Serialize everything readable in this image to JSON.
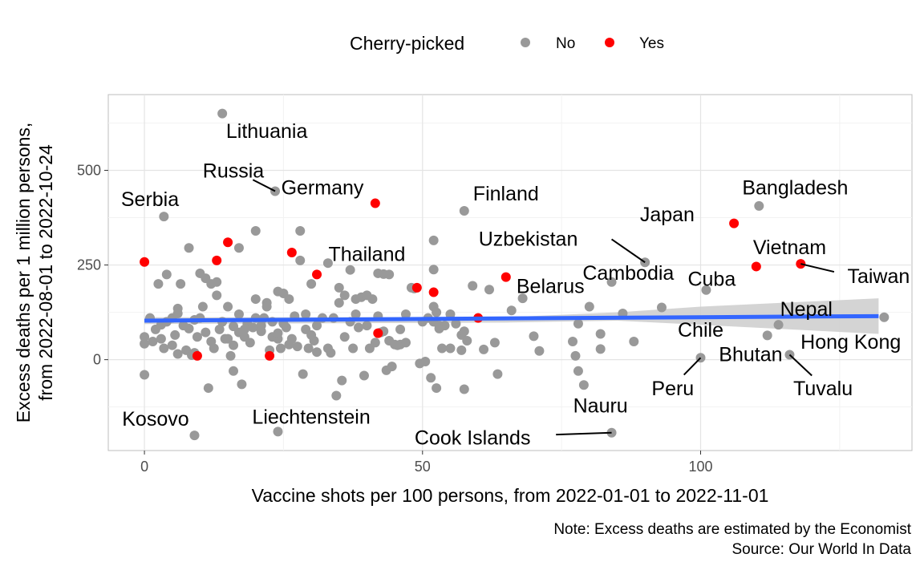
{
  "chart_data": {
    "type": "scatter",
    "xlabel": "Vaccine shots per 100 persons, from 2022-01-01 to 2022-11-01",
    "ylabel": [
      "Excess deaths per 1 million persons,",
      "from 2022-08-01 to 2022-10-24"
    ],
    "xlim": [
      -6.5,
      138
    ],
    "ylim": [
      -240,
      700
    ],
    "x_ticks": [
      0,
      50,
      100
    ],
    "y_ticks": [
      0,
      250,
      500
    ],
    "grid": true,
    "legend": {
      "title": "Cherry-picked",
      "placement": "top",
      "entries": [
        {
          "label": "No",
          "color": "#999999"
        },
        {
          "label": "Yes",
          "color": "#ff0000"
        }
      ]
    },
    "caption": [
      "Note: Excess deaths are estimated by the Economist",
      "Source: Our World In Data"
    ],
    "trend": {
      "x": [
        0,
        132
      ],
      "y": [
        103,
        115
      ],
      "color": "#3366ff"
    },
    "band": {
      "upper": [
        [
          0,
          112
        ],
        [
          65,
          112
        ],
        [
          85,
          125
        ],
        [
          100,
          140
        ],
        [
          132,
          162
        ]
      ],
      "lower": [
        [
          0,
          94
        ],
        [
          65,
          98
        ],
        [
          85,
          103
        ],
        [
          100,
          92
        ],
        [
          132,
          68
        ]
      ]
    },
    "series": [
      {
        "name": "No",
        "color": "#999999",
        "points": [
          [
            14,
            650
          ],
          [
            23.5,
            445
          ],
          [
            3.5,
            378
          ],
          [
            57.5,
            393
          ],
          [
            110.5,
            406
          ],
          [
            90,
            257
          ],
          [
            84,
            205
          ],
          [
            101,
            184
          ],
          [
            133,
            112
          ],
          [
            114,
            92
          ],
          [
            112,
            64
          ],
          [
            116,
            13
          ],
          [
            100,
            5
          ],
          [
            84,
            -193
          ],
          [
            78,
            -30
          ],
          [
            79,
            -67
          ],
          [
            52,
            315
          ],
          [
            52,
            238
          ],
          [
            37,
            237
          ],
          [
            43,
            226
          ],
          [
            44,
            225
          ],
          [
            42,
            228
          ],
          [
            20,
            340
          ],
          [
            28,
            340
          ],
          [
            17,
            295
          ],
          [
            8,
            295
          ],
          [
            1,
            110
          ],
          [
            2,
            80
          ],
          [
            3,
            92
          ],
          [
            4,
            225
          ],
          [
            5,
            110
          ],
          [
            6,
            122
          ],
          [
            7,
            90
          ],
          [
            8,
            82
          ],
          [
            9,
            105
          ],
          [
            10,
            228
          ],
          [
            11,
            215
          ],
          [
            12,
            200
          ],
          [
            13,
            170
          ],
          [
            14,
            100
          ],
          [
            15,
            140
          ],
          [
            16,
            88
          ],
          [
            17,
            72
          ],
          [
            18,
            60
          ],
          [
            19,
            45
          ],
          [
            20,
            160
          ],
          [
            21,
            90
          ],
          [
            22,
            150
          ],
          [
            23,
            100
          ],
          [
            24,
            180
          ],
          [
            25,
            175
          ],
          [
            26,
            160
          ],
          [
            27,
            115
          ],
          [
            28,
            262
          ],
          [
            29,
            120
          ],
          [
            30,
            200
          ],
          [
            31,
            90
          ],
          [
            32,
            110
          ],
          [
            33,
            255
          ],
          [
            34,
            110
          ],
          [
            35,
            150
          ],
          [
            36,
            60
          ],
          [
            37,
            100
          ],
          [
            38,
            160
          ],
          [
            39,
            165
          ],
          [
            40,
            170
          ],
          [
            41,
            160
          ],
          [
            42,
            115
          ],
          [
            43,
            75
          ],
          [
            44,
            50
          ],
          [
            45,
            40
          ],
          [
            46,
            40
          ],
          [
            47,
            45
          ],
          [
            48,
            190
          ],
          [
            50,
            100
          ],
          [
            51,
            110
          ],
          [
            52,
            140
          ],
          [
            52.5,
            125
          ],
          [
            53,
            90
          ],
          [
            54,
            90
          ],
          [
            55,
            30
          ],
          [
            56,
            95
          ],
          [
            57,
            65
          ],
          [
            57.5,
            75
          ],
          [
            58,
            50
          ],
          [
            59,
            195
          ],
          [
            61,
            27
          ],
          [
            62,
            185
          ],
          [
            63,
            45
          ],
          [
            66,
            130
          ],
          [
            68,
            162
          ],
          [
            70,
            62
          ],
          [
            71,
            23
          ],
          [
            77,
            48
          ],
          [
            77.5,
            10
          ],
          [
            78,
            95
          ],
          [
            80,
            140
          ],
          [
            82,
            28
          ],
          [
            82,
            68
          ],
          [
            86,
            122
          ],
          [
            88,
            48
          ],
          [
            93,
            138
          ],
          [
            0,
            42
          ],
          [
            0,
            -40
          ],
          [
            0,
            60
          ],
          [
            1.5,
            48
          ],
          [
            2.5,
            200
          ],
          [
            3,
            55
          ],
          [
            4,
            100
          ],
          [
            5,
            38
          ],
          [
            6,
            15
          ],
          [
            6.5,
            200
          ],
          [
            7.5,
            25
          ],
          [
            8.5,
            12
          ],
          [
            9.5,
            60
          ],
          [
            10.5,
            140
          ],
          [
            11.5,
            -75
          ],
          [
            12.5,
            30
          ],
          [
            13.5,
            80
          ],
          [
            14.5,
            55
          ],
          [
            15.5,
            10
          ],
          [
            16,
            -30
          ],
          [
            17.5,
            -65
          ],
          [
            18.5,
            95
          ],
          [
            19.5,
            85
          ],
          [
            21.5,
            110
          ],
          [
            22.5,
            25
          ],
          [
            24.5,
            30
          ],
          [
            25.5,
            85
          ],
          [
            26.5,
            55
          ],
          [
            27.5,
            35
          ],
          [
            28.5,
            -38
          ],
          [
            29.5,
            30
          ],
          [
            30.5,
            50
          ],
          [
            33.5,
            18
          ],
          [
            34.5,
            -95
          ],
          [
            35.5,
            -55
          ],
          [
            37.5,
            30
          ],
          [
            38.5,
            85
          ],
          [
            39.5,
            -42
          ],
          [
            40.5,
            30
          ],
          [
            41.5,
            45
          ],
          [
            42.5,
            72
          ],
          [
            43.5,
            -28
          ],
          [
            44.5,
            -18
          ],
          [
            45.5,
            38
          ],
          [
            48.5,
            188
          ],
          [
            49.5,
            -10
          ],
          [
            50.5,
            -5
          ],
          [
            51.5,
            -48
          ],
          [
            52.5,
            -75
          ],
          [
            53.5,
            30
          ],
          [
            63.5,
            -38
          ],
          [
            57.5,
            -78
          ],
          [
            5.5,
            65
          ],
          [
            3.5,
            30
          ],
          [
            6,
            135
          ],
          [
            9,
            18
          ],
          [
            10,
            110
          ],
          [
            11,
            72
          ],
          [
            12,
            48
          ],
          [
            17,
            120
          ],
          [
            18,
            80
          ],
          [
            20,
            110
          ],
          [
            21,
            75
          ],
          [
            23,
            60
          ],
          [
            24,
            55
          ],
          [
            25,
            95
          ],
          [
            26,
            40
          ],
          [
            29,
            80
          ],
          [
            30,
            65
          ],
          [
            31,
            20
          ],
          [
            33,
            30
          ],
          [
            35,
            190
          ],
          [
            36,
            170
          ],
          [
            38,
            120
          ],
          [
            40,
            90
          ],
          [
            46,
            80
          ],
          [
            47,
            120
          ],
          [
            52,
            100
          ],
          [
            53,
            82
          ],
          [
            55,
            120
          ],
          [
            57,
            25
          ],
          [
            13,
            205
          ],
          [
            14,
            100
          ],
          [
            15,
            55
          ],
          [
            16,
            38
          ],
          [
            22,
            140
          ],
          [
            24,
            70
          ]
        ]
      },
      {
        "name": "Yes",
        "color": "#ff0000",
        "points": [
          [
            41.5,
            413
          ],
          [
            106,
            360
          ],
          [
            110,
            246
          ],
          [
            118,
            253
          ],
          [
            0,
            258
          ],
          [
            13,
            262
          ],
          [
            15,
            310
          ],
          [
            26.5,
            283
          ],
          [
            31,
            225
          ],
          [
            49,
            190
          ],
          [
            52,
            178
          ],
          [
            65,
            218
          ],
          [
            60,
            110
          ],
          [
            42,
            70
          ],
          [
            22.5,
            10
          ],
          [
            9.5,
            10
          ]
        ]
      }
    ],
    "labels": [
      {
        "text": "Lithuania",
        "x": 14,
        "y": 650,
        "lx": 22,
        "ly": 605
      },
      {
        "text": "Russia",
        "x": 23.5,
        "y": 445,
        "lx": 16,
        "ly": 500
      },
      {
        "text": "Germany",
        "x": 41.5,
        "y": 413,
        "lx": 32,
        "ly": 455
      },
      {
        "text": "Serbia",
        "x": 3.5,
        "y": 378,
        "lx": 1,
        "ly": 425
      },
      {
        "text": "Finland",
        "x": 57.5,
        "y": 393,
        "lx": 65,
        "ly": 440
      },
      {
        "text": "Bangladesh",
        "x": 110.5,
        "y": 406,
        "lx": 117,
        "ly": 455
      },
      {
        "text": "Japan",
        "x": 106,
        "y": 360,
        "lx": 94,
        "ly": 385
      },
      {
        "text": "Uzbekistan",
        "x": 90,
        "y": 257,
        "lx": 69,
        "ly": 320
      },
      {
        "text": "Vietnam",
        "x": 110,
        "y": 246,
        "lx": 116,
        "ly": 298
      },
      {
        "text": "Taiwan",
        "x": 118,
        "y": 253,
        "lx": 132,
        "ly": 222
      },
      {
        "text": "Thailand",
        "x": 31,
        "y": 225,
        "lx": 40,
        "ly": 280
      },
      {
        "text": "Cambodia",
        "x": 90,
        "y": 257,
        "lx": 87,
        "ly": 230
      },
      {
        "text": "Cuba",
        "x": 101,
        "y": 184,
        "lx": 102,
        "ly": 214
      },
      {
        "text": "Belarus",
        "x": 65,
        "y": 218,
        "lx": 73,
        "ly": 195
      },
      {
        "text": "Nepal",
        "x": 114,
        "y": 92,
        "lx": 119,
        "ly": 135
      },
      {
        "text": "Chile",
        "x": 100,
        "y": 5,
        "lx": 100,
        "ly": 80
      },
      {
        "text": "Hong Kong",
        "x": 133,
        "y": 112,
        "lx": 127,
        "ly": 48
      },
      {
        "text": "Bhutan",
        "x": 100,
        "y": 5,
        "lx": 109,
        "ly": 15
      },
      {
        "text": "Peru",
        "x": 100,
        "y": 5,
        "lx": 95,
        "ly": -75
      },
      {
        "text": "Tuvalu",
        "x": 116,
        "y": 13,
        "lx": 122,
        "ly": -75
      },
      {
        "text": "Kosovo",
        "x": 9,
        "y": -200,
        "lx": 2,
        "ly": -155
      },
      {
        "text": "Liechtenstein",
        "x": 24,
        "y": -190,
        "lx": 30,
        "ly": -150
      },
      {
        "text": "Nauru",
        "x": 83,
        "y": -115,
        "lx": 82,
        "ly": -120
      },
      {
        "text": "Cook Islands",
        "x": 84,
        "y": -193,
        "lx": 59,
        "ly": -205
      }
    ],
    "pointers": [
      {
        "from": [
          23.5,
          445
        ],
        "to": [
          19.5,
          475
        ]
      },
      {
        "from": [
          90,
          257
        ],
        "to": [
          84,
          318
        ]
      },
      {
        "from": [
          118,
          253
        ],
        "to": [
          124,
          232
        ]
      },
      {
        "from": [
          100,
          5
        ],
        "to": [
          97,
          -40
        ]
      },
      {
        "from": [
          116,
          13
        ],
        "to": [
          120,
          -42
        ]
      },
      {
        "from": [
          84,
          -193
        ],
        "to": [
          74,
          -198
        ]
      }
    ],
    "extra_points": [
      {
        "name": "Kosovo",
        "x": 9,
        "y": -200,
        "color": "#999999"
      },
      {
        "name": "Liechtenstein",
        "x": 24,
        "y": -190,
        "color": "#999999"
      }
    ]
  }
}
